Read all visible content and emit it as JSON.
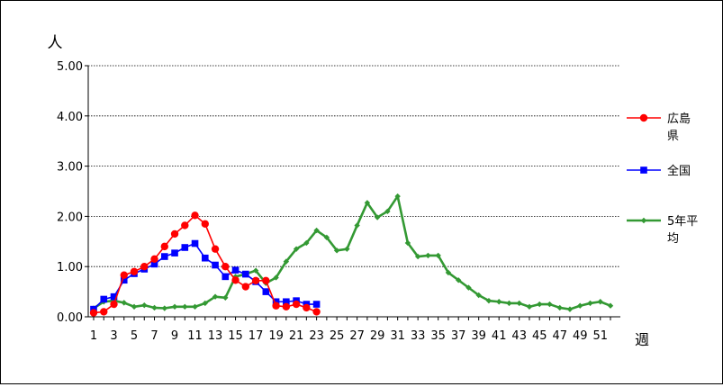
{
  "chart_data": {
    "type": "line",
    "title": "",
    "ylabel": "人",
    "xlabel": "週",
    "ylim": [
      0,
      5
    ],
    "yticks": [
      "0.00",
      "1.00",
      "2.00",
      "3.00",
      "4.00",
      "5.00"
    ],
    "xlim": [
      1,
      52
    ],
    "xtick_labels": [
      1,
      3,
      5,
      7,
      9,
      11,
      13,
      15,
      17,
      19,
      21,
      23,
      25,
      27,
      29,
      31,
      33,
      35,
      37,
      39,
      41,
      43,
      45,
      47,
      49,
      51
    ],
    "grid": "horizontal dotted",
    "legend_position": "right",
    "series": [
      {
        "name": "広島県",
        "color": "#ff0000",
        "marker": "circle",
        "x": [
          1,
          2,
          3,
          4,
          5,
          6,
          7,
          8,
          9,
          10,
          11,
          12,
          13,
          14,
          15,
          16,
          17,
          18,
          19,
          20,
          21,
          22,
          23
        ],
        "values": [
          0.08,
          0.1,
          0.25,
          0.83,
          0.9,
          1.0,
          1.15,
          1.4,
          1.65,
          1.82,
          2.02,
          1.85,
          1.35,
          1.0,
          0.73,
          0.6,
          0.72,
          0.72,
          0.22,
          0.2,
          0.25,
          0.18,
          0.1
        ]
      },
      {
        "name": "全国",
        "color": "#0000ff",
        "marker": "square",
        "x": [
          1,
          2,
          3,
          4,
          5,
          6,
          7,
          8,
          9,
          10,
          11,
          12,
          13,
          14,
          15,
          16,
          17,
          18,
          19,
          20,
          21,
          22,
          23
        ],
        "values": [
          0.15,
          0.35,
          0.4,
          0.73,
          0.86,
          0.95,
          1.05,
          1.2,
          1.27,
          1.38,
          1.46,
          1.17,
          1.03,
          0.8,
          0.93,
          0.85,
          0.7,
          0.5,
          0.3,
          0.3,
          0.32,
          0.25,
          0.25
        ]
      },
      {
        "name": "5年平均",
        "color": "#339933",
        "marker": "diamond",
        "x": [
          1,
          2,
          3,
          4,
          5,
          6,
          7,
          8,
          9,
          10,
          11,
          12,
          13,
          14,
          15,
          16,
          17,
          18,
          19,
          20,
          21,
          22,
          23,
          24,
          25,
          26,
          27,
          28,
          29,
          30,
          31,
          32,
          33,
          34,
          35,
          36,
          37,
          38,
          39,
          40,
          41,
          42,
          43,
          44,
          45,
          46,
          47,
          48,
          49,
          50,
          51,
          52
        ],
        "values": [
          0.17,
          0.3,
          0.32,
          0.28,
          0.2,
          0.23,
          0.18,
          0.17,
          0.2,
          0.2,
          0.2,
          0.27,
          0.4,
          0.38,
          0.8,
          0.85,
          0.92,
          0.67,
          0.78,
          1.1,
          1.35,
          1.47,
          1.72,
          1.58,
          1.32,
          1.35,
          1.82,
          2.27,
          1.98,
          2.1,
          2.4,
          1.47,
          1.2,
          1.22,
          1.22,
          0.88,
          0.73,
          0.58,
          0.43,
          0.32,
          0.3,
          0.27,
          0.27,
          0.2,
          0.25,
          0.25,
          0.18,
          0.15,
          0.22,
          0.27,
          0.3,
          0.22
        ]
      }
    ]
  }
}
